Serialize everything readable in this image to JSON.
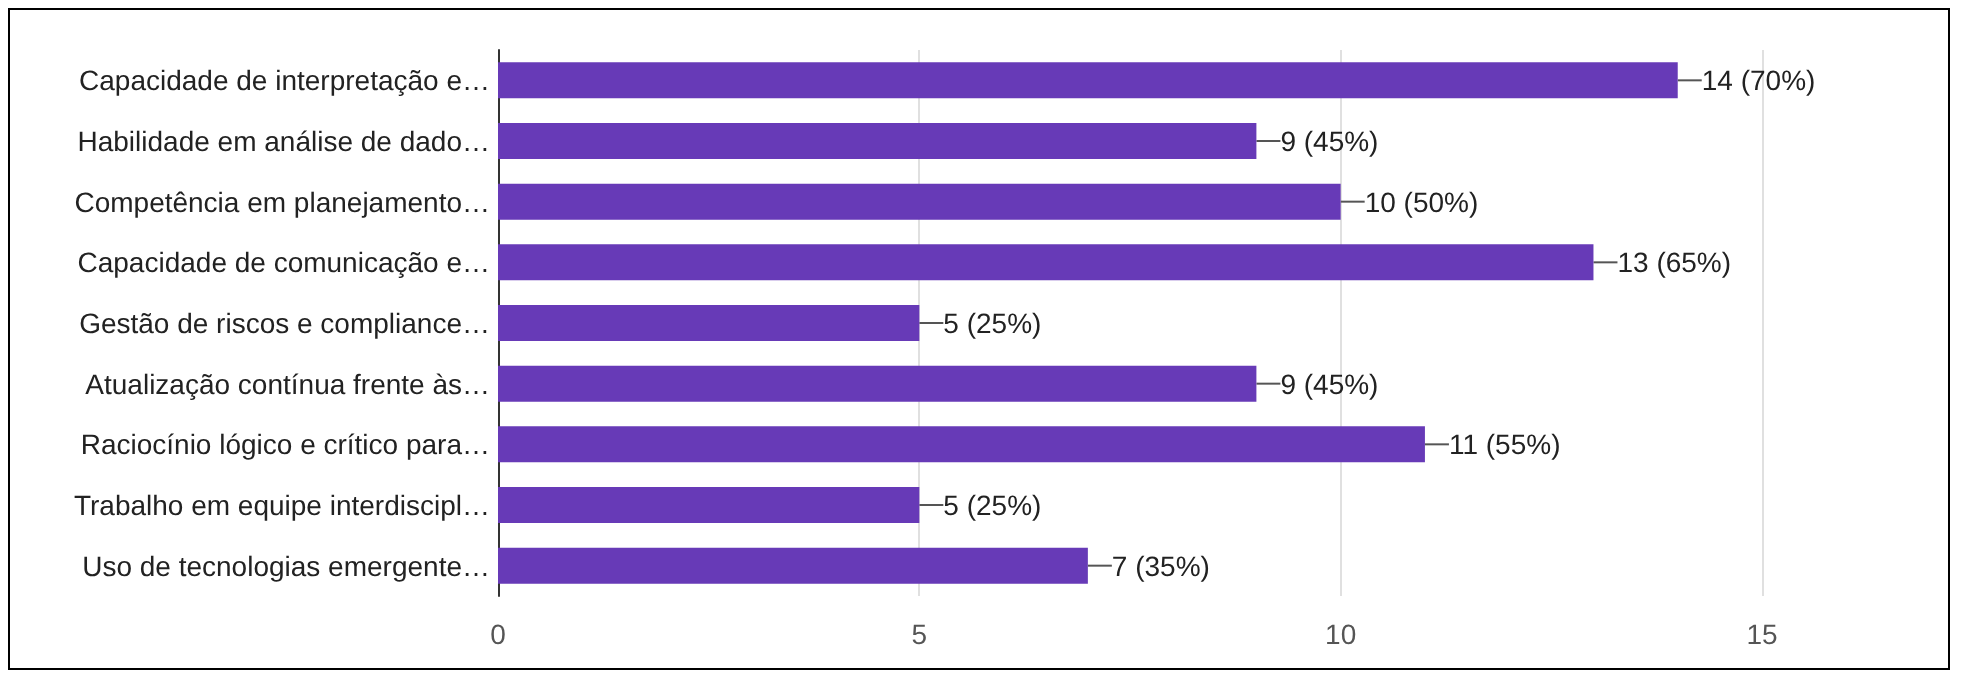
{
  "chart_data": {
    "type": "bar",
    "orientation": "horizontal",
    "categories": [
      "Capacidade de interpretação e…",
      "Habilidade em análise de dado…",
      "Competência em planejamento…",
      "Capacidade de comunicação e…",
      "Gestão de riscos e compliance…",
      "Atualização contínua frente às…",
      "Raciocínio lógico e crítico para…",
      "Trabalho em equipe interdiscipl…",
      "Uso de tecnologias emergente…"
    ],
    "values": [
      14,
      9,
      10,
      13,
      5,
      9,
      11,
      5,
      7
    ],
    "value_labels": [
      "14 (70%)",
      "9 (45%)",
      "10 (50%)",
      "13 (65%)",
      "5 (25%)",
      "9 (45%)",
      "11 (55%)",
      "5 (25%)",
      "7 (35%)"
    ],
    "color": "#673ab7",
    "xlim": [
      0,
      15
    ],
    "xticks": [
      0,
      5,
      10,
      15
    ],
    "grid": "x"
  }
}
